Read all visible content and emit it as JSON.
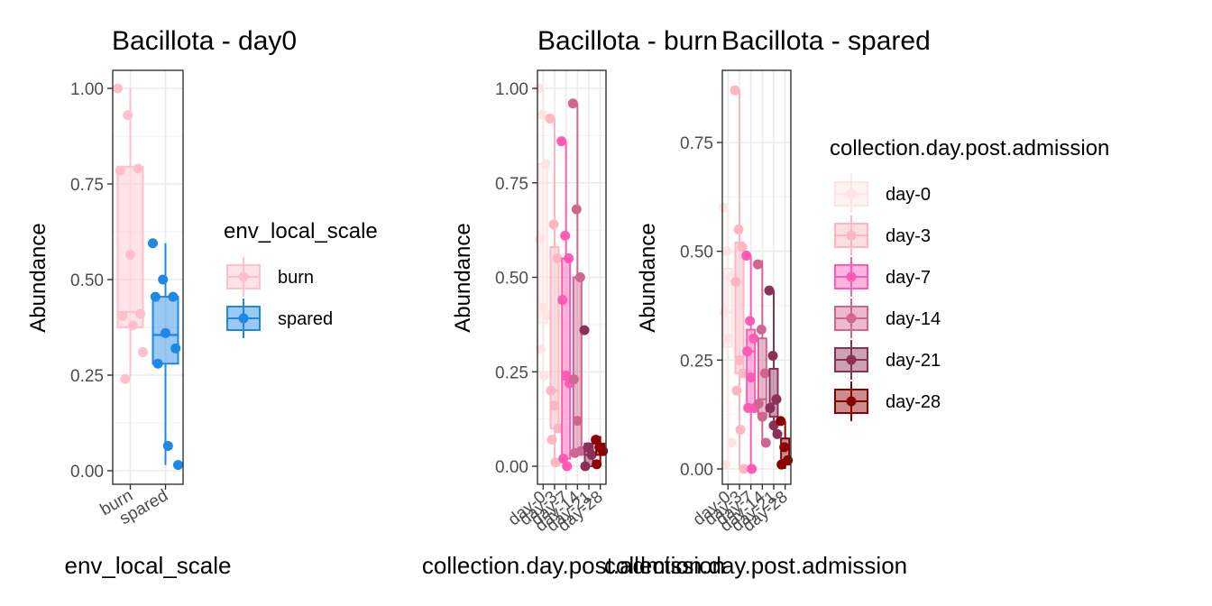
{
  "chart_data": [
    {
      "type": "boxplot",
      "title": "Bacillota - day0",
      "xlabel": "env_local_scale",
      "ylabel": "Abundance",
      "ylim": [
        -0.03,
        1.05
      ],
      "yticks": [
        0,
        0.25,
        0.5,
        0.75,
        1
      ],
      "ytick_labels": [
        "0.00",
        "0.25",
        "0.50",
        "0.75",
        "1.00"
      ],
      "categories": [
        "burn",
        "spared"
      ],
      "color_key": "env_local_scale",
      "groups": [
        {
          "name": "burn",
          "color": "#ffc0cb",
          "box": {
            "q1": 0.375,
            "median": 0.415,
            "q3": 0.795,
            "lower": 0.245,
            "upper": 1.0
          },
          "points": [
            1.0,
            0.93,
            0.79,
            0.785,
            0.565,
            0.41,
            0.405,
            0.38,
            0.31,
            0.24
          ]
        },
        {
          "name": "spared",
          "color": "#1e88e5",
          "box": {
            "q1": 0.28,
            "median": 0.355,
            "q3": 0.455,
            "lower": 0.015,
            "upper": 0.595
          },
          "points": [
            0.595,
            0.5,
            0.455,
            0.455,
            0.36,
            0.32,
            0.28,
            0.065,
            0.015
          ]
        }
      ]
    },
    {
      "type": "boxplot",
      "title": "Bacillota - burn",
      "xlabel": "collection.day.post.admission",
      "ylabel": "Abundance",
      "ylim": [
        -0.03,
        1.05
      ],
      "yticks": [
        0,
        0.25,
        0.5,
        0.75,
        1
      ],
      "ytick_labels": [
        "0.00",
        "0.25",
        "0.50",
        "0.75",
        "1.00"
      ],
      "categories": [
        "day-0",
        "day-3",
        "day-7",
        "day-14",
        "day-21",
        "day-28"
      ],
      "color_key": "collection.day.post.admission",
      "groups": [
        {
          "name": "day-0",
          "box": {
            "q1": 0.38,
            "median": 0.42,
            "q3": 0.8,
            "lower": 0.24,
            "upper": 1.0
          },
          "points": [
            1.0,
            0.93,
            0.8,
            0.6,
            0.42,
            0.4,
            0.31,
            0.24
          ]
        },
        {
          "name": "day-3",
          "box": {
            "q1": 0.1,
            "median": 0.2,
            "q3": 0.58,
            "lower": 0.0,
            "upper": 0.92
          },
          "points": [
            0.92,
            0.64,
            0.55,
            0.2,
            0.16,
            0.1,
            0.07,
            0.01
          ]
        },
        {
          "name": "day-7",
          "box": {
            "q1": 0.02,
            "median": 0.23,
            "q3": 0.55,
            "lower": 0.0,
            "upper": 0.86
          },
          "points": [
            0.86,
            0.61,
            0.55,
            0.44,
            0.24,
            0.22,
            0.02,
            0.0
          ]
        },
        {
          "name": "day-14",
          "box": {
            "q1": 0.04,
            "median": 0.12,
            "q3": 0.5,
            "lower": 0.03,
            "upper": 0.96
          },
          "points": [
            0.96,
            0.68,
            0.5,
            0.23,
            0.12,
            0.04,
            0.035
          ]
        },
        {
          "name": "day-21",
          "box": {
            "q1": 0.0,
            "median": 0.03,
            "q3": 0.06,
            "lower": 0.0,
            "upper": 0.06
          },
          "points": [
            0.36,
            0.05,
            0.03,
            0.0
          ]
        },
        {
          "name": "day-28",
          "box": {
            "q1": 0.03,
            "median": 0.05,
            "q3": 0.06,
            "lower": 0.0,
            "upper": 0.08
          },
          "points": [
            0.07,
            0.05,
            0.04,
            0.005
          ]
        }
      ]
    },
    {
      "type": "boxplot",
      "title": "Bacillota - spared",
      "xlabel": "collection.day.post.admission",
      "ylabel": "Abundance",
      "ylim": [
        -0.03,
        0.9
      ],
      "yticks": [
        0,
        0.25,
        0.5,
        0.75
      ],
      "ytick_labels": [
        "0.00",
        "0.25",
        "0.50",
        "0.75"
      ],
      "categories": [
        "day-0",
        "day-3",
        "day-7",
        "day-14",
        "day-21",
        "day-28"
      ],
      "color_key": "collection.day.post.admission",
      "groups": [
        {
          "name": "day-0",
          "box": {
            "q1": 0.28,
            "median": 0.36,
            "q3": 0.46,
            "lower": 0.01,
            "upper": 0.6
          },
          "points": [
            0.6,
            0.5,
            0.44,
            0.36,
            0.3,
            0.06,
            0.01
          ]
        },
        {
          "name": "day-3",
          "box": {
            "q1": 0.22,
            "median": 0.25,
            "q3": 0.52,
            "lower": 0.0,
            "upper": 0.87
          },
          "points": [
            0.87,
            0.55,
            0.51,
            0.43,
            0.25,
            0.22,
            0.18,
            0.09,
            0.0
          ]
        },
        {
          "name": "day-7",
          "box": {
            "q1": 0.14,
            "median": 0.27,
            "q3": 0.32,
            "lower": 0.0,
            "upper": 0.49
          },
          "points": [
            0.49,
            0.34,
            0.3,
            0.27,
            0.21,
            0.14,
            0.14,
            0.0
          ]
        },
        {
          "name": "day-14",
          "box": {
            "q1": 0.12,
            "median": 0.16,
            "q3": 0.3,
            "lower": 0.06,
            "upper": 0.48
          },
          "points": [
            0.47,
            0.32,
            0.22,
            0.15,
            0.12,
            0.06
          ]
        },
        {
          "name": "day-21",
          "box": {
            "q1": 0.12,
            "median": 0.15,
            "q3": 0.23,
            "lower": 0.08,
            "upper": 0.41
          },
          "points": [
            0.41,
            0.26,
            0.16,
            0.14,
            0.1,
            0.08
          ]
        },
        {
          "name": "day-28",
          "box": {
            "q1": 0.01,
            "median": 0.02,
            "q3": 0.07,
            "lower": 0.0,
            "upper": 0.11
          },
          "points": [
            0.11,
            0.05,
            0.02,
            0.01
          ]
        }
      ]
    }
  ],
  "legends": [
    {
      "title": "env_local_scale",
      "entries": [
        {
          "label": "burn",
          "color": "#ffc0cb"
        },
        {
          "label": "spared",
          "color": "#1e88e5"
        }
      ]
    },
    {
      "title": "collection.day.post.admission",
      "entries": [
        {
          "label": "day-0",
          "color": "#ffe4e6"
        },
        {
          "label": "day-3",
          "color": "#ffb6c1"
        },
        {
          "label": "day-7",
          "color": "#ff5ab4"
        },
        {
          "label": "day-14",
          "color": "#d0668f"
        },
        {
          "label": "day-21",
          "color": "#8a3158"
        },
        {
          "label": "day-28",
          "color": "#8b0000"
        }
      ]
    }
  ]
}
